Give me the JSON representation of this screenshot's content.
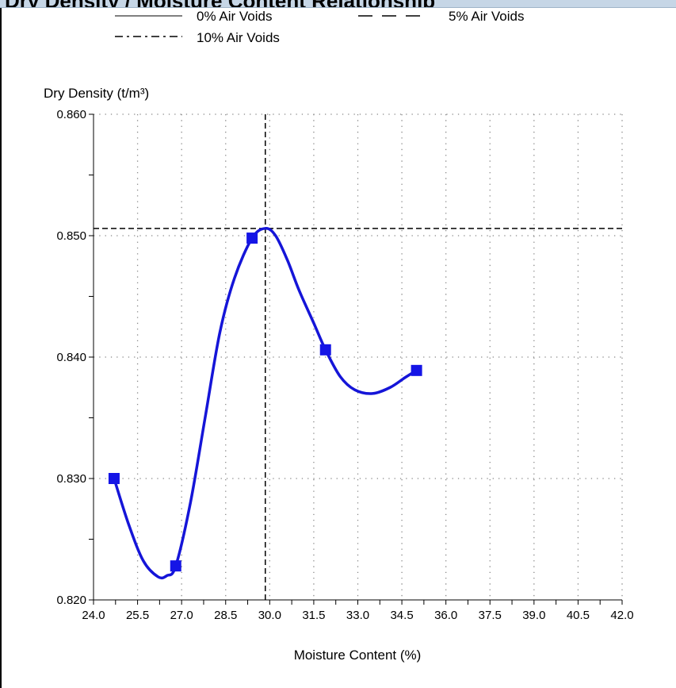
{
  "header": {
    "title": "Dry Density / Moisture Content Relationship"
  },
  "colors": {
    "curve": "#1515d8",
    "marker": "#1515e6",
    "axis": "#000000",
    "grid": "#888888"
  },
  "chart_data": {
    "type": "line",
    "title": "",
    "xlabel": "Moisture Content (%)",
    "ylabel": "Dry Density (t/m³)",
    "xlim": [
      24.0,
      42.0
    ],
    "ylim": [
      0.82,
      0.86
    ],
    "x_ticks": [
      "24.0",
      "25.5",
      "27.0",
      "28.5",
      "30.0",
      "31.5",
      "33.0",
      "34.5",
      "36.0",
      "37.5",
      "39.0",
      "40.5",
      "42.0"
    ],
    "y_ticks": [
      "0.820",
      "0.830",
      "0.840",
      "0.850",
      "0.860"
    ],
    "grid": true,
    "legend": [
      {
        "label": "0% Air Voids",
        "style": "solid"
      },
      {
        "label": "5% Air Voids",
        "style": "dashed"
      },
      {
        "label": "10% Air Voids",
        "style": "dash-dot"
      }
    ],
    "series": [
      {
        "points": [
          [
            24.7,
            0.83
          ],
          [
            26.8,
            0.8228
          ],
          [
            29.4,
            0.8498
          ],
          [
            31.9,
            0.8406
          ],
          [
            35.0,
            0.8389
          ]
        ],
        "curve": [
          [
            24.7,
            0.83
          ],
          [
            25.2,
            0.8262
          ],
          [
            25.7,
            0.8232
          ],
          [
            26.2,
            0.8219
          ],
          [
            26.5,
            0.822
          ],
          [
            26.8,
            0.8228
          ],
          [
            27.3,
            0.828
          ],
          [
            27.8,
            0.835
          ],
          [
            28.3,
            0.842
          ],
          [
            28.8,
            0.8465
          ],
          [
            29.4,
            0.8498
          ],
          [
            29.85,
            0.8506
          ],
          [
            30.2,
            0.85
          ],
          [
            30.6,
            0.848
          ],
          [
            31.0,
            0.8455
          ],
          [
            31.5,
            0.8428
          ],
          [
            31.9,
            0.8406
          ],
          [
            32.4,
            0.8384
          ],
          [
            32.9,
            0.8373
          ],
          [
            33.5,
            0.837
          ],
          [
            34.1,
            0.8375
          ],
          [
            34.6,
            0.8383
          ],
          [
            35.0,
            0.8389
          ]
        ]
      }
    ],
    "optimum": {
      "moisture_content": 29.85,
      "max_dry_density": 0.8506
    }
  }
}
